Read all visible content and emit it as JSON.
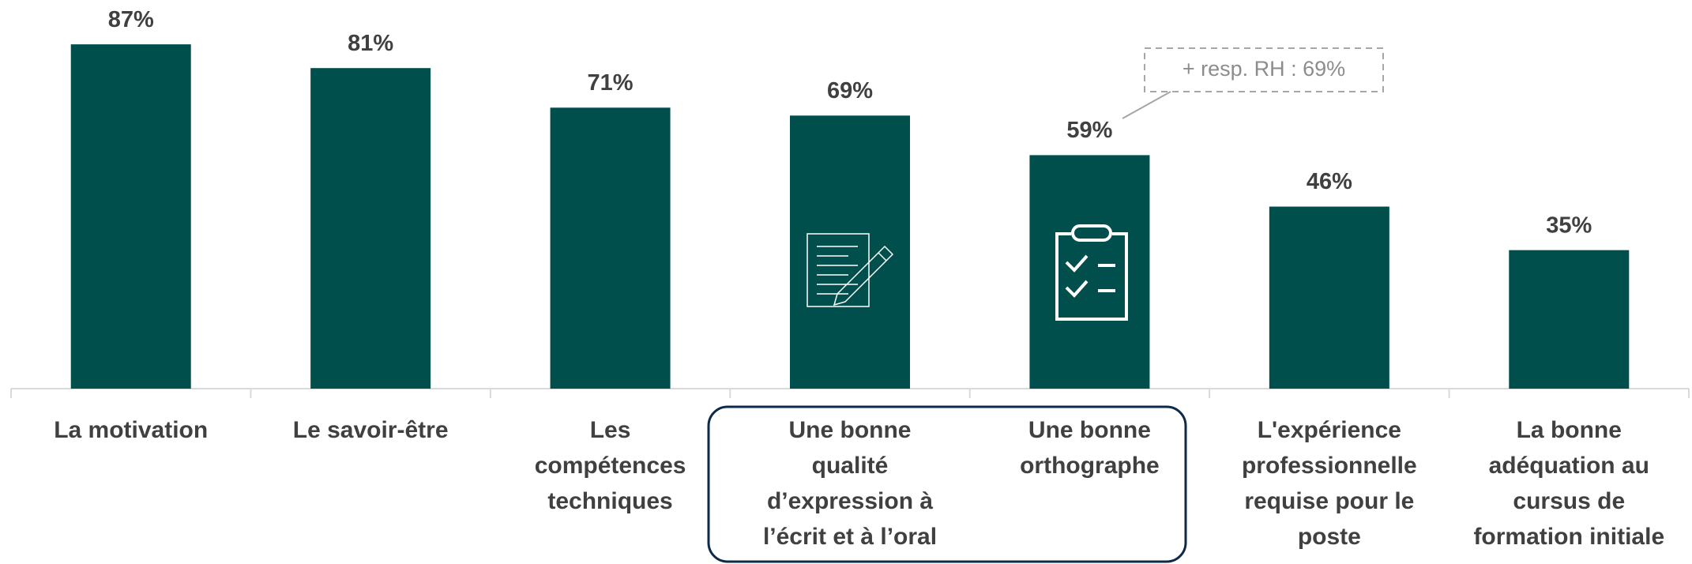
{
  "chart_data": {
    "type": "bar",
    "categories": [
      "La motivation",
      "Le savoir-être",
      "Les\ncompétences\ntechniques",
      "Une bonne\nqualité\nd’expression à\nl’écrit et à l’oral",
      "Une bonne\northographe",
      "L'expérience\nprofessionnelle\nrequise pour le\nposte",
      "La bonne\nadéquation au\ncursus de\nformation initiale"
    ],
    "values": [
      87,
      81,
      71,
      69,
      59,
      46,
      35
    ],
    "value_labels": [
      "87%",
      "81%",
      "71%",
      "69%",
      "59%",
      "46%",
      "35%"
    ],
    "color": "#004f4d",
    "ylim": [
      0,
      100
    ],
    "annotation": "+ resp. RH : 69%"
  }
}
